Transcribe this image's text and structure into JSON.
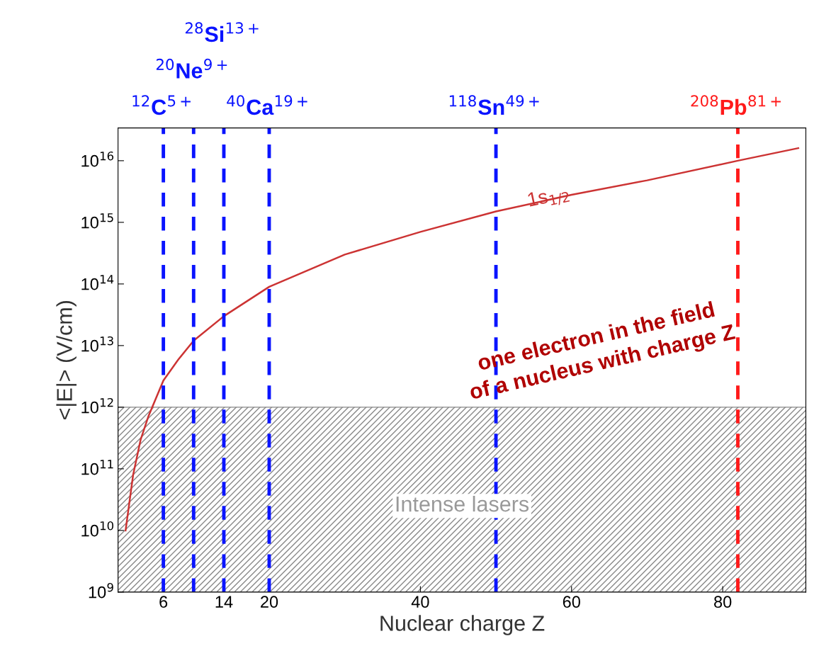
{
  "chart_data": {
    "type": "line",
    "xlabel": "Nuclear charge Z",
    "ylabel": "<|E|> (V/cm)",
    "log": "y",
    "x": [
      1,
      2,
      3,
      4,
      6,
      8,
      10,
      14,
      20,
      30,
      40,
      50,
      60,
      70,
      82,
      90
    ],
    "series": [
      {
        "color": "#cc3333",
        "values": [
          10000000000.0,
          80000000000.0,
          300000000000.0,
          700000000000.0,
          2700000000000.0,
          6000000000000.0,
          12000000000000.0,
          30000000000000.0,
          90000000000000.0,
          300000000000000.0,
          700000000000000.0,
          1500000000000000.0,
          2800000000000000.0,
          4800000000000000.0,
          1e+16,
          1.6e+16
        ]
      }
    ],
    "xlim": [
      0,
      91
    ],
    "xticks": [
      6,
      14,
      20,
      40,
      60,
      80
    ],
    "ylim": [
      1000000000.0,
      3.4e+16
    ],
    "yticks": [
      {
        "value": 1000000000.0,
        "label": "10$^{9}$"
      },
      {
        "value": 10000000000.0,
        "label": "10$^{10}$"
      },
      {
        "value": 100000000000.0,
        "label": "10$^{11}$"
      },
      {
        "value": 1000000000000.0,
        "label": "10$^{12}$"
      },
      {
        "value": 10000000000000.0,
        "label": "10$^{13}$"
      },
      {
        "value": 100000000000000.0,
        "label": "10$^{14}$"
      },
      {
        "value": 1000000000000000.0,
        "label": "10$^{15}$"
      },
      {
        "value": 1e+16,
        "label": "10$^{16}$"
      }
    ],
    "grid": false,
    "legend": false,
    "ref_lines": [
      {
        "axis": "x",
        "value": 6,
        "label": "$^{12}$C$^{5+}$",
        "color": "#0a14ff",
        "line_style": "dashed"
      },
      {
        "axis": "x",
        "value": 10,
        "label": "$^{20}$Ne$^{9+}$",
        "color": "#0a14ff",
        "line_style": "dashed"
      },
      {
        "axis": "x",
        "value": 14,
        "label": "$^{28}$Si$^{13+}$",
        "color": "#0a14ff",
        "line_style": "dashed"
      },
      {
        "axis": "x",
        "value": 20,
        "label": "$^{40}$Ca$^{19+}$",
        "color": "#0a14ff",
        "line_style": "dashed"
      },
      {
        "axis": "x",
        "value": 50,
        "label": "$^{118}$Sn$^{49+}$",
        "color": "#0a14ff",
        "line_style": "dashed"
      },
      {
        "axis": "x",
        "value": 82,
        "label": "$^{208}$Pb$^{81+}$",
        "color": "#ff1a1a",
        "line_style": "dashed"
      }
    ],
    "bands": [
      {
        "axis": "y",
        "from": 1000000000.0,
        "to": 1000000000000.0,
        "label": "Intense lasers",
        "color": "#888888"
      }
    ],
    "annotations": [
      {
        "text": "1s$_{1/2}$",
        "x": 57,
        "y": 2500000000000000.0
      },
      "one electron in the field\nof a nucleus with charge Z"
    ]
  }
}
